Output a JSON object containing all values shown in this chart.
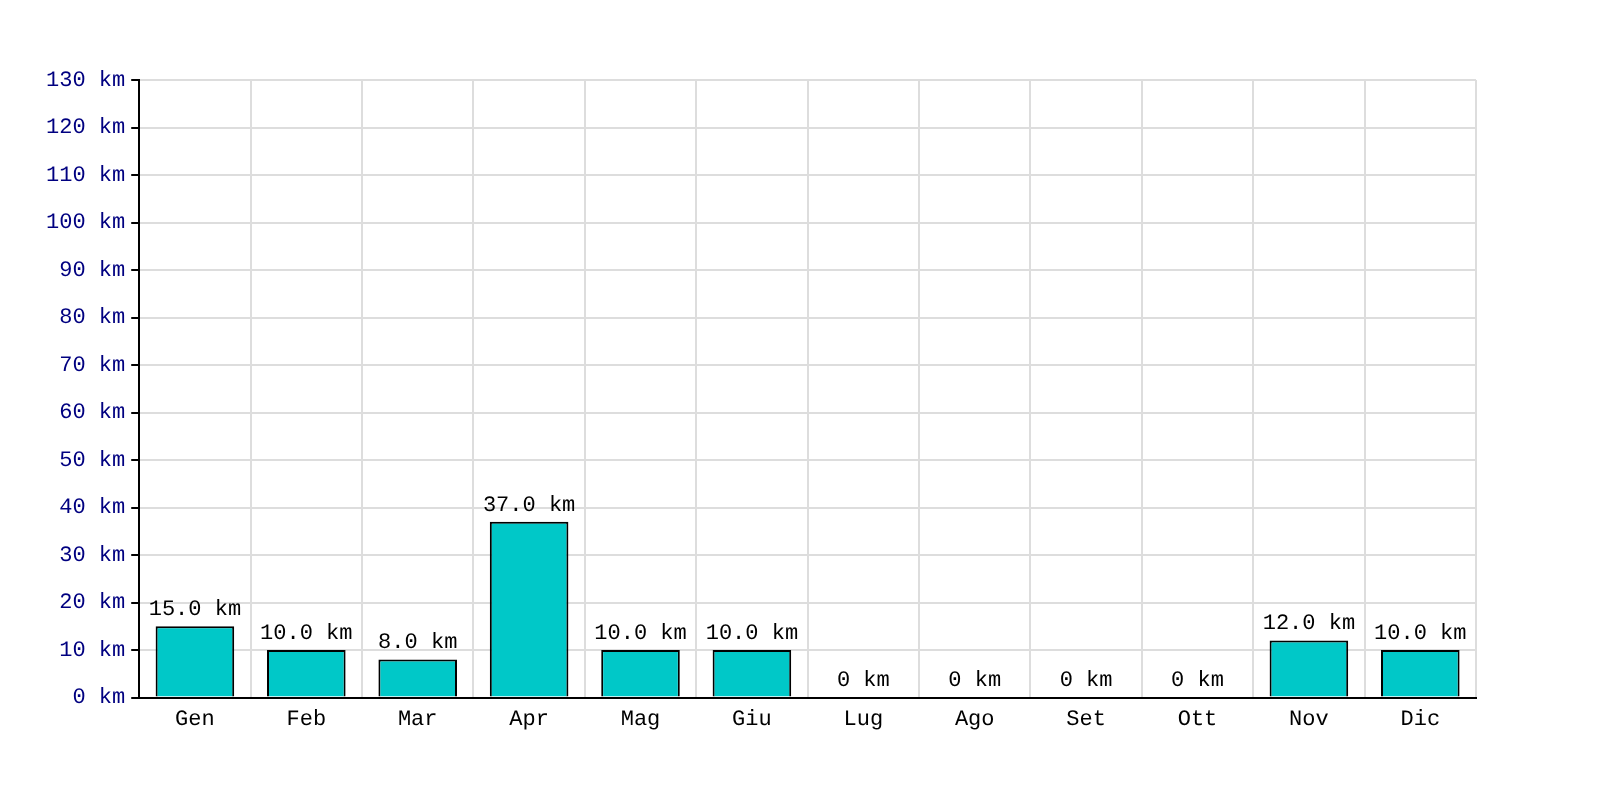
{
  "chart_data": {
    "type": "bar",
    "categories": [
      "Gen",
      "Feb",
      "Mar",
      "Apr",
      "Mag",
      "Giu",
      "Lug",
      "Ago",
      "Set",
      "Ott",
      "Nov",
      "Dic"
    ],
    "values": [
      15,
      10,
      8,
      37,
      10,
      10,
      0,
      0,
      0,
      0,
      12,
      10
    ],
    "value_labels": [
      "15.0 km",
      "10.0 km",
      "8.0 km",
      "37.0 km",
      "10.0 km",
      "10.0 km",
      "0 km",
      "0 km",
      "0 km",
      "0 km",
      "12.0 km",
      "10.0 km"
    ],
    "color": "#00c8c8",
    "ylim": [
      0,
      130
    ],
    "yticks": [
      {
        "value": 0,
        "label": "0 km"
      },
      {
        "value": 10,
        "label": "10 km"
      },
      {
        "value": 20,
        "label": "20 km"
      },
      {
        "value": 30,
        "label": "30 km"
      },
      {
        "value": 40,
        "label": "40 km"
      },
      {
        "value": 50,
        "label": "50 km"
      },
      {
        "value": 60,
        "label": "60 km"
      },
      {
        "value": 70,
        "label": "70 km"
      },
      {
        "value": 80,
        "label": "80 km"
      },
      {
        "value": 90,
        "label": "90 km"
      },
      {
        "value": 100,
        "label": "100 km"
      },
      {
        "value": 110,
        "label": "110 km"
      },
      {
        "value": 120,
        "label": "120 km"
      },
      {
        "value": 130,
        "label": "130 km"
      }
    ],
    "grid": true,
    "legend": false
  }
}
